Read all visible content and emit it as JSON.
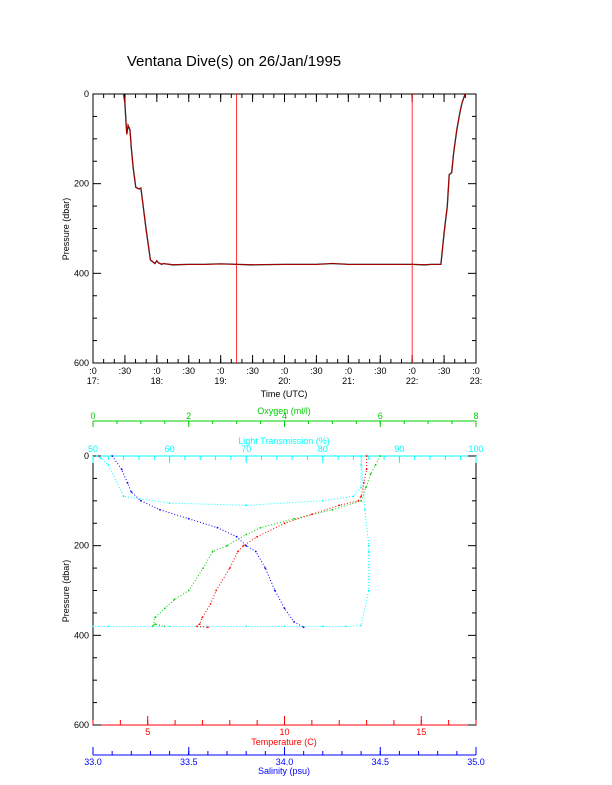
{
  "title": "Ventana Dive(s) on 26/Jan/1995",
  "colors": {
    "axis": "#000000",
    "depth_trace": "#000000",
    "depth_trace_overlay": "#ff0000",
    "marker_line": "#ff0000",
    "oxygen": "#00cc00",
    "light": "#00ffff",
    "temperature": "#ff0000",
    "salinity": "#0000ff"
  },
  "chart_data": [
    {
      "type": "line",
      "name": "time-depth",
      "xlabel": "Time (UTC)",
      "ylabel": "Pressure (dbar)",
      "xlim": [
        17.0,
        23.0
      ],
      "ylim": [
        600,
        0
      ],
      "y_reversed": true,
      "xticks": [
        {
          "v": 17.0,
          "l1": ":0",
          "l2": "17:"
        },
        {
          "v": 17.5,
          "l1": ":30",
          "l2": ""
        },
        {
          "v": 18.0,
          "l1": ":0",
          "l2": "18:"
        },
        {
          "v": 18.5,
          "l1": ":30",
          "l2": ""
        },
        {
          "v": 19.0,
          "l1": ":0",
          "l2": "19:"
        },
        {
          "v": 19.5,
          "l1": ":30",
          "l2": ""
        },
        {
          "v": 20.0,
          "l1": ":0",
          "l2": "20:"
        },
        {
          "v": 20.5,
          "l1": ":30",
          "l2": ""
        },
        {
          "v": 21.0,
          "l1": ":0",
          "l2": "21:"
        },
        {
          "v": 21.5,
          "l1": ":30",
          "l2": ""
        },
        {
          "v": 22.0,
          "l1": ":0",
          "l2": "22:"
        },
        {
          "v": 22.5,
          "l1": ":30",
          "l2": ""
        },
        {
          "v": 23.0,
          "l1": ":0",
          "l2": "23:"
        }
      ],
      "yticks": [
        "0",
        "200",
        "400",
        "600"
      ],
      "ytick_values": [
        0,
        200,
        400,
        600
      ],
      "markers_x": [
        19.25,
        22.0
      ],
      "series": [
        {
          "x": [
            17.48,
            17.5,
            17.52,
            17.53,
            17.55,
            17.58,
            17.6,
            17.63,
            17.67,
            17.72,
            17.75,
            17.83,
            17.9,
            17.97,
            18.0,
            18.03,
            18.08,
            18.1,
            18.25,
            18.5,
            18.75,
            19.0,
            19.25,
            19.5,
            20.0,
            20.5,
            20.75,
            21.0,
            21.5,
            22.0,
            22.2,
            22.3,
            22.45,
            22.5,
            22.55,
            22.58,
            22.62,
            22.65,
            22.7,
            22.75,
            22.78,
            22.83
          ],
          "y": [
            0,
            20,
            70,
            90,
            70,
            80,
            120,
            165,
            208,
            212,
            210,
            300,
            370,
            378,
            372,
            377,
            380,
            378,
            381,
            380,
            380,
            379,
            380,
            381,
            380,
            380,
            378,
            380,
            380,
            380,
            381,
            380,
            380,
            310,
            250,
            180,
            175,
            130,
            80,
            40,
            20,
            0
          ]
        }
      ]
    },
    {
      "type": "scatter",
      "name": "profiles",
      "ylabel": "Pressure (dbar)",
      "ylim": [
        600,
        0
      ],
      "y_reversed": true,
      "yticks": [
        "0",
        "200",
        "400",
        "600"
      ],
      "ytick_values": [
        0,
        200,
        400,
        600
      ],
      "axes": {
        "oxygen": {
          "label": "Oxygen (ml/l)",
          "range": [
            0,
            8
          ],
          "ticks": [
            "0",
            "2",
            "4",
            "6",
            "8"
          ],
          "tick_values": [
            0,
            2,
            4,
            6,
            8
          ]
        },
        "light": {
          "label": "Light Transmission (%)",
          "range": [
            50,
            100
          ],
          "ticks": [
            "50",
            "60",
            "70",
            "80",
            "90",
            "100"
          ],
          "tick_values": [
            50,
            60,
            70,
            80,
            90,
            100
          ]
        },
        "temperature": {
          "label": "Temperature (C)",
          "range": [
            3.0,
            17.0
          ],
          "ticks": [
            "5",
            "10",
            "15"
          ],
          "tick_values": [
            5,
            10,
            15
          ]
        },
        "salinity": {
          "label": "Salinity (psu)",
          "range": [
            33.0,
            35.0
          ],
          "ticks": [
            "33.0",
            "33.5",
            "34.0",
            "34.5",
            "35.0"
          ],
          "tick_values": [
            33.0,
            33.5,
            34.0,
            34.5,
            35.0
          ]
        }
      },
      "series": [
        {
          "name": "Oxygen (ml/l)",
          "axis": "oxygen",
          "x": [
            6.0,
            5.9,
            5.8,
            5.7,
            5.6,
            5.0,
            4.2,
            3.5,
            3.2,
            2.8,
            2.5,
            2.3,
            2.0,
            1.7,
            1.5,
            1.3,
            1.25,
            1.3,
            1.5
          ],
          "y": [
            0,
            20,
            40,
            70,
            100,
            120,
            140,
            160,
            175,
            200,
            213,
            250,
            300,
            320,
            340,
            360,
            380,
            375,
            380
          ]
        },
        {
          "name": "Light Transmission (%)",
          "axis": "light",
          "x": [
            50.5,
            51,
            52,
            54,
            60,
            70,
            80,
            84,
            85,
            85,
            85,
            85.5,
            86,
            86,
            86,
            85,
            83,
            80,
            75,
            70,
            60,
            52,
            50
          ],
          "y": [
            0,
            5,
            20,
            90,
            105,
            110,
            100,
            90,
            70,
            20,
            0,
            120,
            200,
            213,
            300,
            378,
            380,
            380,
            380,
            380,
            380,
            380,
            380
          ]
        },
        {
          "name": "Temperature (C)",
          "axis": "temperature",
          "x": [
            13.0,
            13.0,
            12.9,
            12.8,
            12.7,
            12.0,
            11.0,
            10.0,
            9.0,
            8.5,
            8.3,
            8.0,
            7.5,
            7.3,
            7.0,
            6.9,
            6.8,
            7.2
          ],
          "y": [
            0,
            30,
            60,
            90,
            100,
            110,
            130,
            150,
            180,
            200,
            213,
            250,
            300,
            330,
            360,
            375,
            380,
            382
          ]
        },
        {
          "name": "Salinity (psu)",
          "axis": "salinity",
          "x": [
            33.1,
            33.15,
            33.18,
            33.2,
            33.25,
            33.35,
            33.5,
            33.65,
            33.75,
            33.8,
            33.85,
            33.9,
            33.95,
            34.0,
            34.05,
            34.1
          ],
          "y": [
            0,
            30,
            60,
            80,
            100,
            120,
            140,
            160,
            180,
            200,
            213,
            250,
            300,
            340,
            370,
            382
          ]
        }
      ]
    }
  ]
}
